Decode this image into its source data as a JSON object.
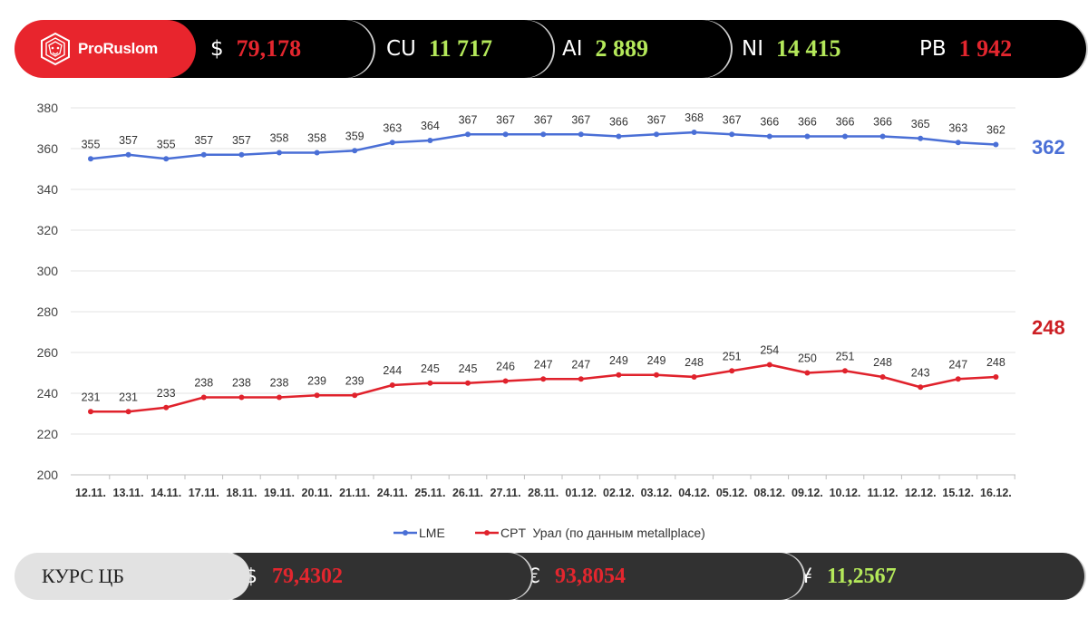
{
  "brand": {
    "name": "ProRuslom"
  },
  "ticker": [
    {
      "symbol": "$",
      "value": "79,178",
      "color": "red"
    },
    {
      "symbol": "CU",
      "value": "11 717",
      "color": "green"
    },
    {
      "symbol": "AI",
      "value": "2 889",
      "color": "green"
    },
    {
      "symbol": "NI",
      "value": "14 415",
      "color": "green"
    },
    {
      "symbol": "PB",
      "value": "1 942",
      "color": "red"
    }
  ],
  "rates": {
    "label": "КУРС ЦБ",
    "items": [
      {
        "symbol": "$",
        "value": "79,4302",
        "color": "red"
      },
      {
        "symbol": "€",
        "value": "93,8054",
        "color": "red"
      },
      {
        "symbol": "¥",
        "value": "11,2567",
        "color": "green"
      }
    ]
  },
  "colors": {
    "lme": "#4a6fd6",
    "cpt": "#e0222c",
    "brand_red": "#e8252d"
  },
  "chart_data": {
    "type": "line",
    "categories": [
      "12.11.",
      "13.11.",
      "14.11.",
      "17.11.",
      "18.11.",
      "19.11.",
      "20.11.",
      "21.11.",
      "24.11.",
      "25.11.",
      "26.11.",
      "27.11.",
      "28.11.",
      "01.12.",
      "02.12.",
      "03.12.",
      "04.12.",
      "05.12.",
      "08.12.",
      "09.12.",
      "10.12.",
      "11.12.",
      "12.12.",
      "15.12.",
      "16.12."
    ],
    "series": [
      {
        "name": "LME",
        "values": [
          355,
          357,
          355,
          357,
          357,
          358,
          358,
          359,
          363,
          364,
          367,
          367,
          367,
          367,
          366,
          367,
          368,
          367,
          366,
          366,
          366,
          366,
          365,
          363,
          362
        ]
      },
      {
        "name": "CPT  Урал (по данным metallplace)",
        "values": [
          231,
          231,
          233,
          238,
          238,
          238,
          239,
          239,
          244,
          245,
          245,
          246,
          247,
          247,
          249,
          249,
          248,
          251,
          254,
          250,
          251,
          248,
          243,
          247,
          248
        ]
      }
    ],
    "yticks": [
      200,
      220,
      240,
      260,
      280,
      300,
      320,
      340,
      360,
      380
    ],
    "ylim": [
      200,
      380
    ],
    "grid": true,
    "legend_position": "bottom",
    "last_values": {
      "lme": "362",
      "cpt": "248"
    }
  }
}
